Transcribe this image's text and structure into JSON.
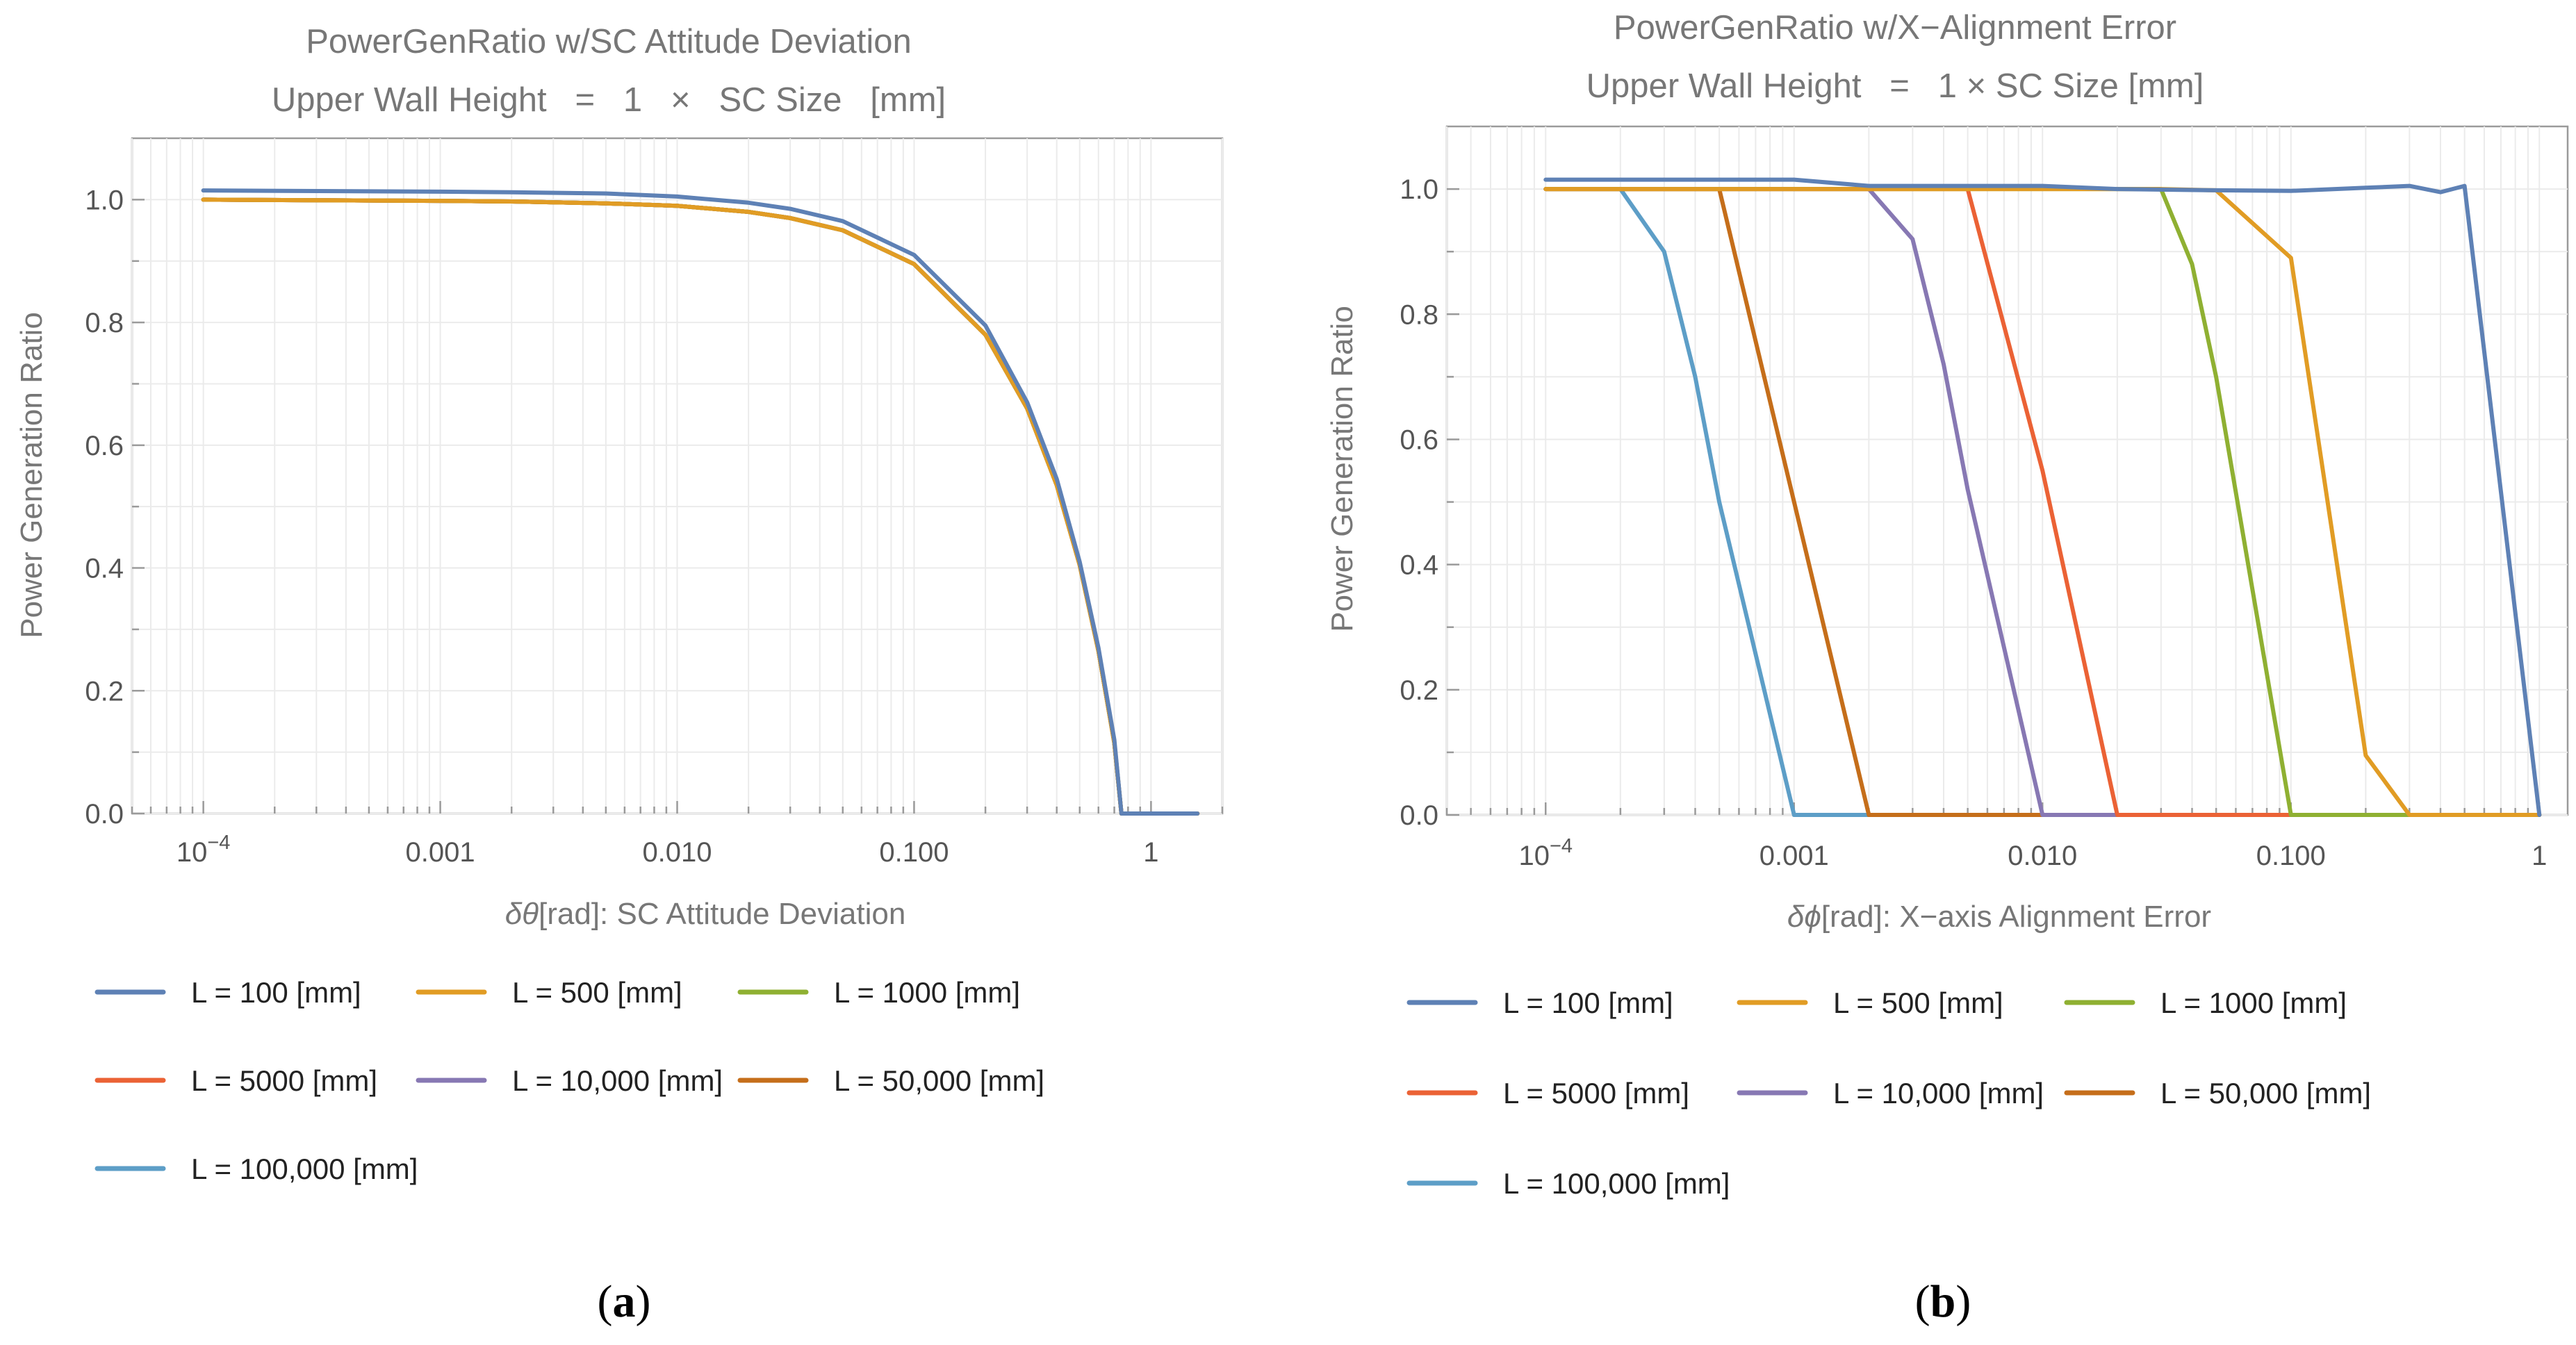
{
  "chart_data": [
    {
      "type": "line",
      "panel": "a",
      "title": "PowerGenRatio w/SC Attitude Deviation",
      "subtitle": "Upper Wall Height   =   1   ×   SC Size   [mm]",
      "xlabel_parts": [
        "δθ",
        "[rad]: SC Attitude Deviation"
      ],
      "ylabel": "Power Generation Ratio",
      "xscale": "log",
      "xlim": [
        5e-05,
        2
      ],
      "ylim": [
        0,
        1.1
      ],
      "xticks": [
        {
          "value": 0.0001,
          "base": "10",
          "exp": "−4"
        },
        {
          "value": 0.001,
          "label": "0.001"
        },
        {
          "value": 0.01,
          "label": "0.010"
        },
        {
          "value": 0.1,
          "label": "0.100"
        },
        {
          "value": 1,
          "label": "1"
        }
      ],
      "yticks": [
        {
          "value": 0,
          "label": "0.0"
        },
        {
          "value": 0.2,
          "label": "0.2"
        },
        {
          "value": 0.4,
          "label": "0.4"
        },
        {
          "value": 0.6,
          "label": "0.6"
        },
        {
          "value": 0.8,
          "label": "0.8"
        },
        {
          "value": 1.0,
          "label": "1.0"
        }
      ],
      "grid": true,
      "legend_position": "bottom",
      "caption": "(a)",
      "series": [
        {
          "name": "L = 100 [mm]",
          "color": "#5e81b5",
          "x": [
            0.0001,
            0.001,
            0.002,
            0.005,
            0.01,
            0.02,
            0.03,
            0.05,
            0.1,
            0.2,
            0.3,
            0.4,
            0.5,
            0.6,
            0.7,
            0.75,
            0.8,
            1.0,
            1.57
          ],
          "y": [
            1.015,
            1.013,
            1.012,
            1.01,
            1.005,
            0.995,
            0.985,
            0.965,
            0.91,
            0.795,
            0.67,
            0.545,
            0.41,
            0.27,
            0.12,
            0.0,
            0.0,
            0.0,
            0.0
          ]
        },
        {
          "name": "L = 500 [mm]",
          "color": "#e19c24",
          "x": [
            0.0001,
            0.001,
            0.002,
            0.005,
            0.01,
            0.02,
            0.03,
            0.05,
            0.1,
            0.2,
            0.3,
            0.4,
            0.5,
            0.6,
            0.7,
            0.75,
            0.8,
            1.0,
            1.57
          ],
          "y": [
            1.0,
            0.998,
            0.997,
            0.994,
            0.99,
            0.98,
            0.97,
            0.95,
            0.895,
            0.78,
            0.66,
            0.535,
            0.405,
            0.265,
            0.115,
            0.0,
            0.0,
            0.0,
            0.0
          ]
        },
        {
          "name": "L = 1000 [mm]",
          "color": "#8fb032",
          "x": [
            0.0001,
            0.001,
            0.002,
            0.005,
            0.01,
            0.02,
            0.03,
            0.05,
            0.1,
            0.2,
            0.3,
            0.4,
            0.5,
            0.6,
            0.7,
            0.75,
            0.8,
            1.0,
            1.57
          ],
          "y": [
            1.0,
            0.998,
            0.997,
            0.994,
            0.99,
            0.98,
            0.97,
            0.95,
            0.895,
            0.78,
            0.66,
            0.535,
            0.405,
            0.265,
            0.115,
            0.0,
            0.0,
            0.0,
            0.0
          ]
        },
        {
          "name": "L = 5000 [mm]",
          "color": "#eb6235",
          "x": [
            0.0001,
            0.001,
            0.002,
            0.005,
            0.01,
            0.02,
            0.03,
            0.05,
            0.1,
            0.2,
            0.3,
            0.4,
            0.5,
            0.6,
            0.7,
            0.75,
            0.8,
            1.0,
            1.57
          ],
          "y": [
            1.0,
            0.998,
            0.997,
            0.994,
            0.99,
            0.98,
            0.97,
            0.95,
            0.895,
            0.78,
            0.66,
            0.535,
            0.405,
            0.265,
            0.115,
            0.0,
            0.0,
            0.0,
            0.0
          ]
        },
        {
          "name": "L = 10,000 [mm]",
          "color": "#8778b3",
          "x": [
            0.0001,
            0.001,
            0.002,
            0.005,
            0.01,
            0.02,
            0.03,
            0.05,
            0.1,
            0.2,
            0.3,
            0.4,
            0.5,
            0.6,
            0.7,
            0.75,
            0.8,
            1.0,
            1.57
          ],
          "y": [
            1.0,
            0.998,
            0.997,
            0.994,
            0.99,
            0.98,
            0.97,
            0.95,
            0.895,
            0.78,
            0.66,
            0.535,
            0.405,
            0.265,
            0.115,
            0.0,
            0.0,
            0.0,
            0.0
          ]
        },
        {
          "name": "L = 50,000 [mm]",
          "color": "#c56e1a",
          "x": [
            0.0001,
            0.001,
            0.002,
            0.005,
            0.01,
            0.02,
            0.03,
            0.05,
            0.1,
            0.2,
            0.3,
            0.4,
            0.5,
            0.6,
            0.7,
            0.75,
            0.8,
            1.0,
            1.57
          ],
          "y": [
            1.0,
            0.998,
            0.997,
            0.994,
            0.99,
            0.98,
            0.97,
            0.95,
            0.895,
            0.78,
            0.66,
            0.535,
            0.405,
            0.265,
            0.115,
            0.0,
            0.0,
            0.0,
            0.0
          ]
        },
        {
          "name": "L = 100,000 [mm]",
          "color": "#5d9ec7",
          "x": [
            0.0001,
            0.001,
            0.002,
            0.005,
            0.01,
            0.02,
            0.03,
            0.05,
            0.1,
            0.2,
            0.3,
            0.4,
            0.5,
            0.6,
            0.7,
            0.75,
            0.8,
            1.0,
            1.57
          ],
          "y": [
            1.0,
            0.998,
            0.997,
            0.994,
            0.99,
            0.98,
            0.97,
            0.95,
            0.895,
            0.78,
            0.66,
            0.535,
            0.405,
            0.265,
            0.115,
            0.0,
            0.0,
            0.0,
            0.0
          ]
        }
      ]
    },
    {
      "type": "line",
      "panel": "b",
      "title": "PowerGenRatio w/X−Alignment Error",
      "subtitle": "Upper Wall Height   =   1 × SC Size [mm]",
      "xlabel_parts": [
        "δϕ",
        "[rad]: X−axis Alignment Error"
      ],
      "ylabel": "Power Generation Ratio",
      "xscale": "log",
      "xlim": [
        4e-05,
        1.3
      ],
      "ylim": [
        0,
        1.1
      ],
      "xticks": [
        {
          "value": 0.0001,
          "base": "10",
          "exp": "−4"
        },
        {
          "value": 0.001,
          "label": "0.001"
        },
        {
          "value": 0.01,
          "label": "0.010"
        },
        {
          "value": 0.1,
          "label": "0.100"
        },
        {
          "value": 1,
          "label": "1"
        }
      ],
      "yticks": [
        {
          "value": 0,
          "label": "0.0"
        },
        {
          "value": 0.2,
          "label": "0.2"
        },
        {
          "value": 0.4,
          "label": "0.4"
        },
        {
          "value": 0.6,
          "label": "0.6"
        },
        {
          "value": 0.8,
          "label": "0.8"
        },
        {
          "value": 1.0,
          "label": "1.0"
        }
      ],
      "grid": true,
      "legend_position": "bottom",
      "caption": "(b)",
      "series": [
        {
          "name": "L = 100 [mm]",
          "color": "#5e81b5",
          "x": [
            0.0001,
            0.001,
            0.002,
            0.005,
            0.01,
            0.02,
            0.05,
            0.1,
            0.2,
            0.3,
            0.4,
            0.5,
            1.0
          ],
          "y": [
            1.015,
            1.015,
            1.005,
            1.005,
            1.005,
            1.0,
            0.998,
            0.997,
            1.002,
            1.005,
            0.995,
            1.005,
            0.0
          ]
        },
        {
          "name": "L = 500 [mm]",
          "color": "#e19c24",
          "x": [
            0.0001,
            0.001,
            0.01,
            0.03,
            0.05,
            0.1,
            0.2,
            0.3,
            1.0
          ],
          "y": [
            1.0,
            1.0,
            1.0,
            1.0,
            0.998,
            0.89,
            0.095,
            0.0,
            0.0
          ]
        },
        {
          "name": "L = 1000 [mm]",
          "color": "#8fb032",
          "x": [
            0.0001,
            0.001,
            0.01,
            0.03,
            0.04,
            0.05,
            0.1,
            1.0
          ],
          "y": [
            1.0,
            1.0,
            1.0,
            1.0,
            0.88,
            0.7,
            0.0,
            0.0
          ]
        },
        {
          "name": "L = 5000 [mm]",
          "color": "#eb6235",
          "x": [
            0.0001,
            0.001,
            0.003,
            0.005,
            0.01,
            0.02,
            1.0
          ],
          "y": [
            1.0,
            1.0,
            1.0,
            1.0,
            0.55,
            0.0,
            0.0
          ]
        },
        {
          "name": "L = 10,000 [mm]",
          "color": "#8778b3",
          "x": [
            0.0001,
            0.001,
            0.002,
            0.003,
            0.004,
            0.005,
            0.01,
            1.0
          ],
          "y": [
            1.0,
            1.0,
            1.0,
            0.92,
            0.72,
            0.52,
            0.0,
            0.0
          ]
        },
        {
          "name": "L = 50,000 [mm]",
          "color": "#c56e1a",
          "x": [
            0.0001,
            0.0005,
            0.001,
            0.002,
            1.0
          ],
          "y": [
            1.0,
            1.0,
            0.5,
            0.0,
            0.0
          ]
        },
        {
          "name": "L = 100,000 [mm]",
          "color": "#5d9ec7",
          "x": [
            0.0001,
            0.0002,
            0.0003,
            0.0004,
            0.0005,
            0.001,
            1.0
          ],
          "y": [
            1.0,
            1.0,
            0.9,
            0.7,
            0.5,
            0.0,
            0.0
          ]
        }
      ]
    }
  ]
}
